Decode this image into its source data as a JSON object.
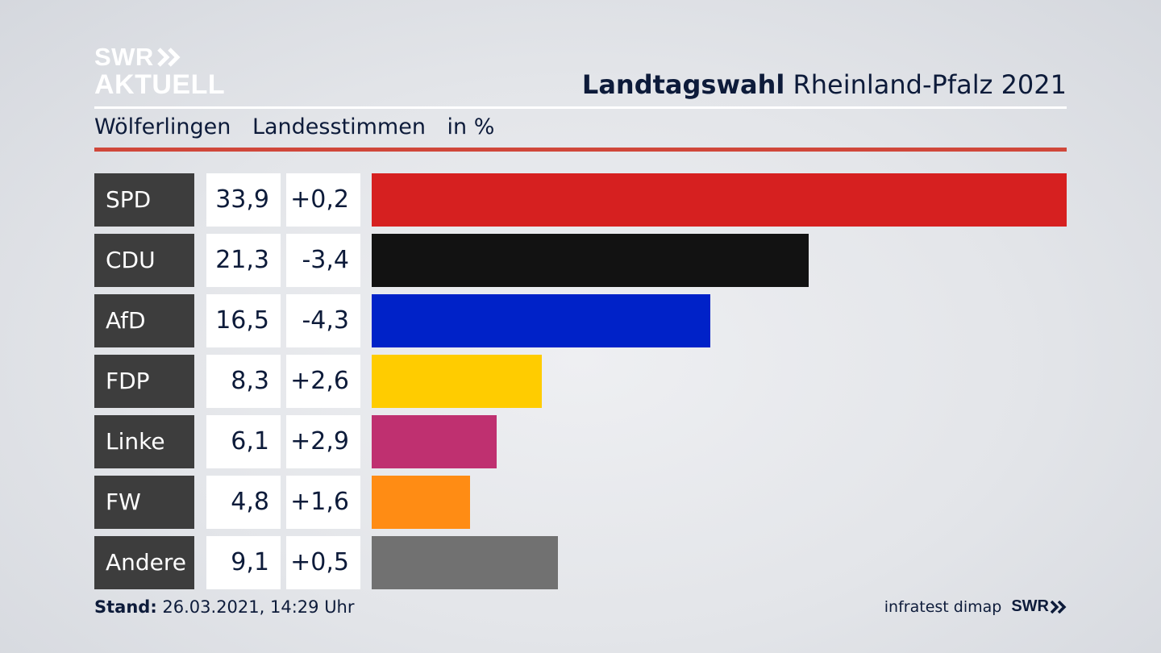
{
  "header": {
    "logo_line1": "SWR",
    "logo_line2": "AKTUELL",
    "title_bold": "Landtagswahl",
    "title_rest": "Rheinland-Pfalz 2021",
    "place": "Wölferlingen",
    "vote_type": "Landesstimmen",
    "unit": "in %"
  },
  "footer": {
    "stand_label": "Stand:",
    "stand_value": "26.03.2021, 14:29 Uhr",
    "source": "infratest dimap",
    "broadcaster": "SWR"
  },
  "chart_data": {
    "type": "bar",
    "orientation": "horizontal",
    "categories": [
      "SPD",
      "CDU",
      "AfD",
      "FDP",
      "Linke",
      "FW",
      "Andere"
    ],
    "values": [
      33.9,
      21.3,
      16.5,
      8.3,
      6.1,
      4.8,
      9.1
    ],
    "value_labels": [
      "33,9",
      "21,3",
      "16,5",
      "8,3",
      "6,1",
      "4,8",
      "9,1"
    ],
    "change_labels": [
      "+0,2",
      "-3,4",
      "-4,3",
      "+2,6",
      "+2,9",
      "+1,6",
      "+0,5"
    ],
    "changes": [
      0.2,
      -3.4,
      -4.3,
      2.6,
      2.9,
      1.6,
      0.5
    ],
    "colors": [
      "#d62020",
      "#121212",
      "#0022c8",
      "#ffcc00",
      "#bf3070",
      "#ff8c14",
      "#717171"
    ],
    "xlim": [
      0,
      33.9
    ],
    "grid": false
  }
}
